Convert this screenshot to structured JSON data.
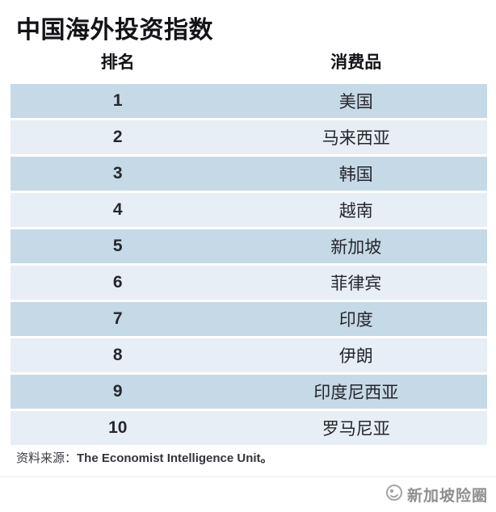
{
  "title": "中国海外投资指数",
  "table": {
    "columns": {
      "rank": "排名",
      "category": "消费品"
    },
    "rows": [
      {
        "rank": "1",
        "country": "美国"
      },
      {
        "rank": "2",
        "country": "马来西亚"
      },
      {
        "rank": "3",
        "country": "韩国"
      },
      {
        "rank": "4",
        "country": "越南"
      },
      {
        "rank": "5",
        "country": "新加坡"
      },
      {
        "rank": "6",
        "country": "菲律宾"
      },
      {
        "rank": "7",
        "country": "印度"
      },
      {
        "rank": "8",
        "country": "伊朗"
      },
      {
        "rank": "9",
        "country": "印度尼西亚"
      },
      {
        "rank": "10",
        "country": "罗马尼亚"
      }
    ]
  },
  "source": {
    "label": "资料来源：",
    "text": "The Economist Intelligence Unit。"
  },
  "watermark": {
    "icon": "circle-logo-icon",
    "text": "新加坡险圈"
  },
  "colors": {
    "row_dark": "#c6d9e6",
    "row_light": "#e7eef5",
    "title_color": "#121217",
    "body_text": "#26262e",
    "source_color": "#3a3a44",
    "watermark_color": "#8f8f8f"
  },
  "chart_data": {
    "type": "table",
    "title": "中国海外投资指数",
    "columns": [
      "排名",
      "消费品"
    ],
    "rows": [
      [
        1,
        "美国"
      ],
      [
        2,
        "马来西亚"
      ],
      [
        3,
        "韩国"
      ],
      [
        4,
        "越南"
      ],
      [
        5,
        "新加坡"
      ],
      [
        6,
        "菲律宾"
      ],
      [
        7,
        "印度"
      ],
      [
        8,
        "伊朗"
      ],
      [
        9,
        "印度尼西亚"
      ],
      [
        10,
        "罗马尼亚"
      ]
    ],
    "source": "资料来源：The Economist Intelligence Unit。",
    "layout": "alternating row shading, two centered columns, no gridlines"
  }
}
